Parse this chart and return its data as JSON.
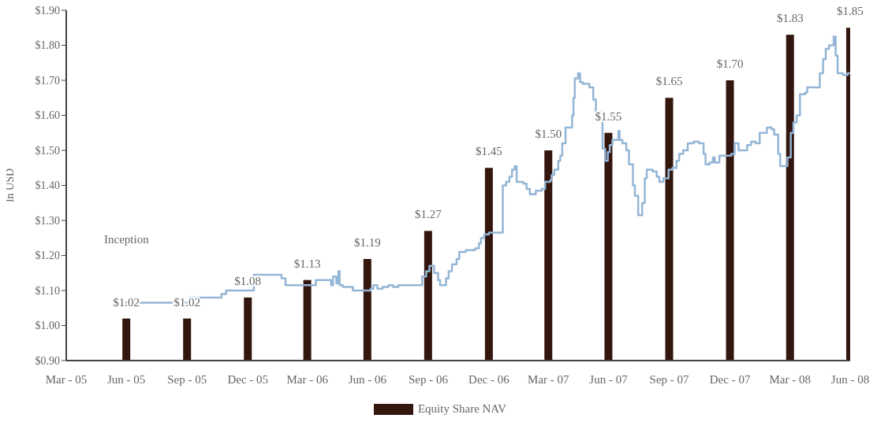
{
  "chart_data": {
    "type": "bar",
    "ylabel": "In USD",
    "legend": "bottom",
    "xlim": [
      "2005-03-31",
      "2008-06-30"
    ],
    "xticks": [
      {
        "value": "2005-03-31",
        "label": "Mar - 05"
      },
      {
        "value": "2005-06-30",
        "label": "Jun - 05"
      },
      {
        "value": "2005-09-30",
        "label": "Sep - 05"
      },
      {
        "value": "2005-12-31",
        "label": "Dec - 05"
      },
      {
        "value": "2006-03-31",
        "label": "Mar - 06"
      },
      {
        "value": "2006-06-30",
        "label": "Jun - 06"
      },
      {
        "value": "2006-09-30",
        "label": "Sep - 06"
      },
      {
        "value": "2006-12-31",
        "label": "Dec - 06"
      },
      {
        "value": "2007-03-31",
        "label": "Mar - 07"
      },
      {
        "value": "2007-06-30",
        "label": "Jun - 07"
      },
      {
        "value": "2007-09-30",
        "label": "Sep - 07"
      },
      {
        "value": "2007-12-31",
        "label": "Dec - 07"
      },
      {
        "value": "2008-03-31",
        "label": "Mar - 08"
      },
      {
        "value": "2008-06-30",
        "label": "Jun - 08"
      }
    ],
    "ylim": [
      0.9,
      1.9
    ],
    "yticks": [
      {
        "value": 0.9,
        "label": "$0.90"
      },
      {
        "value": 1.0,
        "label": "$1.00"
      },
      {
        "value": 1.1,
        "label": "$1.10"
      },
      {
        "value": 1.2,
        "label": "$1.20"
      },
      {
        "value": 1.3,
        "label": "$1.30"
      },
      {
        "value": 1.4,
        "label": "$1.40"
      },
      {
        "value": 1.5,
        "label": "$1.50"
      },
      {
        "value": 1.6,
        "label": "$1.60"
      },
      {
        "value": 1.7,
        "label": "$1.70"
      },
      {
        "value": 1.8,
        "label": "$1.80"
      },
      {
        "value": 1.9,
        "label": "$1.90"
      }
    ],
    "annotations": [
      "Inception"
    ],
    "series": [
      {
        "name": "Equity Share NAV",
        "color": "#33160e",
        "x": [
          "2005-06-30",
          "2005-09-30",
          "2005-12-31",
          "2006-03-31",
          "2006-06-30",
          "2006-09-30",
          "2006-12-31",
          "2007-03-31",
          "2007-06-30",
          "2007-09-30",
          "2007-12-31",
          "2008-03-31",
          "2008-06-30"
        ],
        "values": [
          1.02,
          1.02,
          1.08,
          1.13,
          1.19,
          1.27,
          1.45,
          1.5,
          1.55,
          1.65,
          1.7,
          1.83,
          1.85
        ],
        "value_labels": [
          "$1.02",
          "$1.02",
          "$1.08",
          "$1.13",
          "$1.19",
          "$1.27",
          "$1.45",
          "$1.50",
          "$1.55",
          "$1.65",
          "$1.70",
          "$1.83",
          "$1.85"
        ]
      },
      {
        "type": "step",
        "color": "#94b6d6",
        "x": [
          "2005-06-28",
          "2005-10-04",
          "2005-11-21",
          "2005-11-28",
          "2006-01-09",
          "2006-02-20",
          "2006-02-26",
          "2006-04-13",
          "2006-05-06",
          "2006-05-09",
          "2006-05-14",
          "2006-05-17",
          "2006-05-19",
          "2006-05-24",
          "2006-06-08",
          "2006-07-05",
          "2006-07-09",
          "2006-07-15",
          "2006-07-23",
          "2006-08-01",
          "2006-08-08",
          "2006-08-16",
          "2006-09-21",
          "2006-09-27",
          "2006-10-02",
          "2006-10-09",
          "2006-10-15",
          "2006-10-18",
          "2006-10-27",
          "2006-10-31",
          "2006-11-05",
          "2006-11-12",
          "2006-11-16",
          "2006-11-26",
          "2006-12-10",
          "2006-12-16",
          "2006-12-19",
          "2006-12-24",
          "2006-12-31",
          "2007-01-21",
          "2007-01-26",
          "2007-01-31",
          "2007-02-04",
          "2007-02-08",
          "2007-02-11",
          "2007-02-21",
          "2007-02-26",
          "2007-03-03",
          "2007-03-12",
          "2007-03-21",
          "2007-03-26",
          "2007-04-03",
          "2007-04-05",
          "2007-04-09",
          "2007-04-15",
          "2007-04-18",
          "2007-04-21",
          "2007-04-26",
          "2007-05-06",
          "2007-05-08",
          "2007-05-10",
          "2007-05-15",
          "2007-05-18",
          "2007-05-22",
          "2007-06-01",
          "2007-06-07",
          "2007-06-11",
          "2007-06-17",
          "2007-06-18",
          "2007-06-21",
          "2007-06-25",
          "2007-06-29",
          "2007-07-02",
          "2007-07-06",
          "2007-07-15",
          "2007-07-17",
          "2007-07-21",
          "2007-07-27",
          "2007-07-31",
          "2007-08-06",
          "2007-08-09",
          "2007-08-14",
          "2007-08-20",
          "2007-08-24",
          "2007-08-27",
          "2007-09-05",
          "2007-09-11",
          "2007-09-15",
          "2007-09-21",
          "2007-09-29",
          "2007-10-05",
          "2007-10-11",
          "2007-10-15",
          "2007-10-21",
          "2007-10-28",
          "2007-11-06",
          "2007-11-14",
          "2007-11-21",
          "2007-11-24",
          "2007-11-30",
          "2007-12-05",
          "2007-12-08",
          "2007-12-15",
          "2008-01-02",
          "2008-01-07",
          "2008-01-13",
          "2008-01-26",
          "2008-02-01",
          "2008-02-08",
          "2008-02-14",
          "2008-02-25",
          "2008-03-03",
          "2008-03-07",
          "2008-03-13",
          "2008-03-16",
          "2008-03-27",
          "2008-04-01",
          "2008-04-05",
          "2008-04-10",
          "2008-04-15",
          "2008-04-23",
          "2008-04-26",
          "2008-05-15",
          "2008-05-20",
          "2008-05-24",
          "2008-05-29",
          "2008-06-05",
          "2008-06-08",
          "2008-06-11",
          "2008-06-19",
          "2008-06-26",
          "2008-06-30"
        ],
        "values": [
          1.065,
          1.08,
          1.09,
          1.1,
          1.145,
          1.135,
          1.115,
          1.13,
          1.115,
          1.14,
          1.12,
          1.155,
          1.115,
          1.11,
          1.1,
          1.105,
          1.115,
          1.105,
          1.11,
          1.115,
          1.11,
          1.115,
          1.14,
          1.155,
          1.17,
          1.15,
          1.13,
          1.115,
          1.135,
          1.155,
          1.175,
          1.19,
          1.21,
          1.215,
          1.22,
          1.235,
          1.25,
          1.26,
          1.265,
          1.4,
          1.41,
          1.425,
          1.445,
          1.455,
          1.41,
          1.405,
          1.39,
          1.375,
          1.385,
          1.39,
          1.41,
          1.415,
          1.43,
          1.445,
          1.47,
          1.485,
          1.52,
          1.565,
          1.6,
          1.65,
          1.705,
          1.72,
          1.695,
          1.69,
          1.68,
          1.645,
          1.6,
          1.61,
          1.595,
          1.505,
          1.47,
          1.495,
          1.515,
          1.53,
          1.555,
          1.53,
          1.52,
          1.5,
          1.46,
          1.4,
          1.37,
          1.315,
          1.35,
          1.42,
          1.445,
          1.44,
          1.425,
          1.41,
          1.42,
          1.445,
          1.45,
          1.47,
          1.49,
          1.5,
          1.52,
          1.525,
          1.52,
          1.49,
          1.46,
          1.465,
          1.48,
          1.465,
          1.485,
          1.49,
          1.52,
          1.5,
          1.515,
          1.525,
          1.52,
          1.55,
          1.565,
          1.56,
          1.545,
          1.49,
          1.455,
          1.48,
          1.55,
          1.58,
          1.6,
          1.66,
          1.665,
          1.68,
          1.72,
          1.76,
          1.79,
          1.8,
          1.825,
          1.77,
          1.72,
          1.715,
          1.72,
          1.72
        ]
      }
    ]
  }
}
